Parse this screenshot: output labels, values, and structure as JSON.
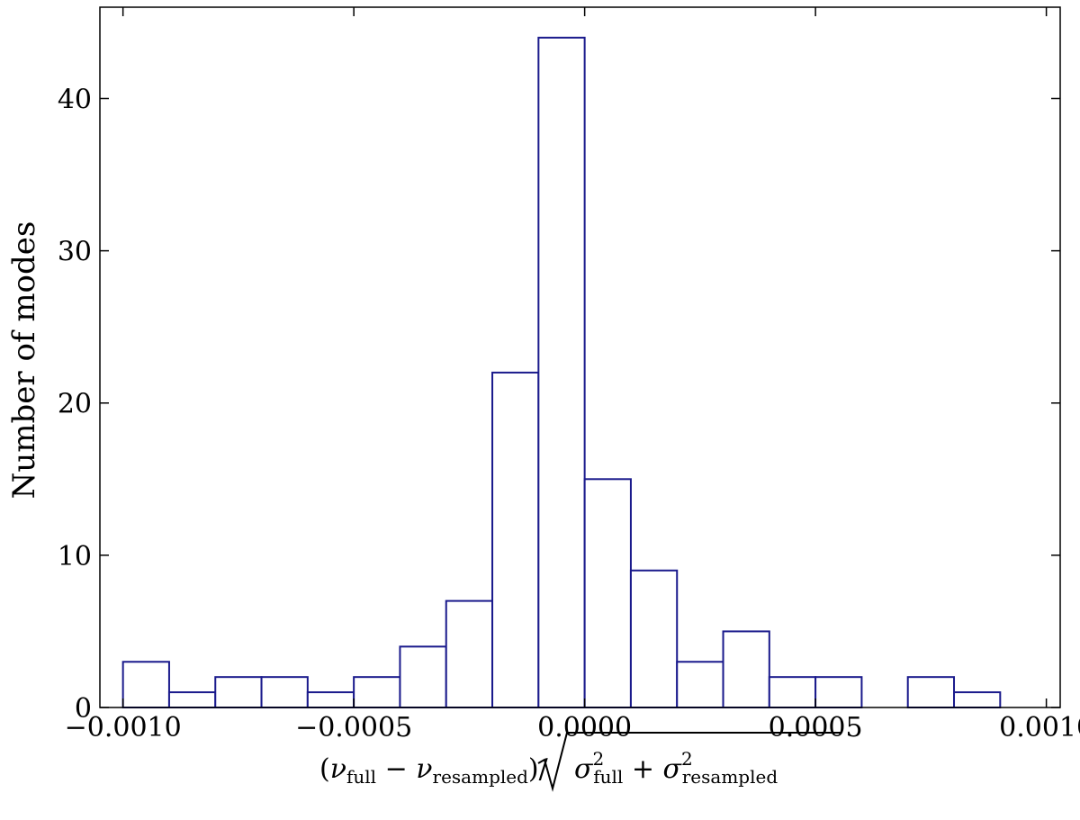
{
  "chart_data": {
    "type": "bar",
    "subtype": "histogram",
    "title": "",
    "ylabel": "Number of modes",
    "xlabel": {
      "open_paren": "(",
      "nu1": "ν",
      "nu1_sub": "full",
      "minus": " − ",
      "nu2": "ν",
      "nu2_sub": "resampled",
      "close_paren_slash": ")/",
      "sigma1": "σ",
      "sigma1_sub": "full",
      "sigma1_sup": "2",
      "plus": " + ",
      "sigma2": "σ",
      "sigma2_sub": "resampled",
      "sigma2_sup": "2"
    },
    "xlim": [
      -0.00105,
      0.00103
    ],
    "ylim": [
      0,
      46
    ],
    "x_ticks": [
      {
        "value": -0.001,
        "label": "−0.0010"
      },
      {
        "value": -0.0005,
        "label": "−0.0005"
      },
      {
        "value": 0.0,
        "label": "0.0000"
      },
      {
        "value": 0.0005,
        "label": "0.0005"
      },
      {
        "value": 0.001,
        "label": "0.0010"
      }
    ],
    "y_ticks": [
      {
        "value": 0,
        "label": "0"
      },
      {
        "value": 10,
        "label": "10"
      },
      {
        "value": 20,
        "label": "20"
      },
      {
        "value": 30,
        "label": "30"
      },
      {
        "value": 40,
        "label": "40"
      }
    ],
    "bin_edges": [
      -0.001,
      -0.0009,
      -0.0008,
      -0.0007,
      -0.0006,
      -0.0005,
      -0.0004,
      -0.0003,
      -0.0002,
      -0.0001,
      0.0,
      0.0001,
      0.0002,
      0.0003,
      0.0004,
      0.0005,
      0.0006,
      0.0007,
      0.0008,
      0.0009,
      0.001
    ],
    "counts": [
      3,
      1,
      2,
      2,
      1,
      2,
      4,
      7,
      22,
      44,
      15,
      9,
      3,
      5,
      2,
      2,
      0,
      2,
      1,
      0
    ],
    "bar_edge_color": "#1a1a8c",
    "bar_fill_color": "#ffffff",
    "grid": false,
    "legend": "none"
  }
}
